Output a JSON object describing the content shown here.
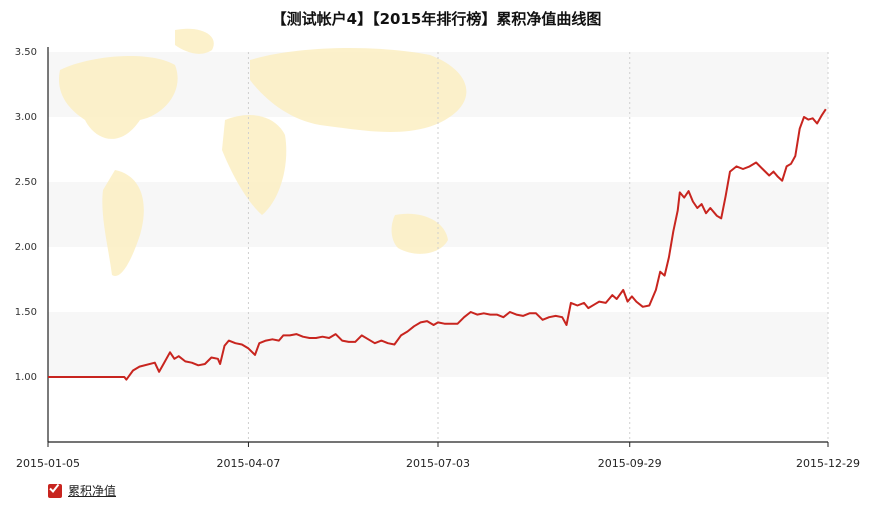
{
  "chart_data": {
    "type": "line",
    "title": "【测试帐户4】【2015年排行榜】累积净值曲线图",
    "xlabel": "",
    "ylabel": "",
    "ylim": [
      0.5,
      3.5
    ],
    "yticks": [
      "1.00",
      "1.50",
      "2.00",
      "2.50",
      "3.00",
      "3.50"
    ],
    "xticks": [
      "2015-01-05",
      "2015-04-07",
      "2015-07-03",
      "2015-09-29",
      "2015-12-29"
    ],
    "grid": "horizontal bands, vertical dashed lines at x ticks",
    "legend": "bottom-left",
    "colors": {
      "line": "#c8251f",
      "map": "#fbefc2",
      "band": "#f7f7f7"
    },
    "series": [
      {
        "name": "累积净值",
        "points": [
          [
            "2015-01-05",
            1.0
          ],
          [
            "2015-01-12",
            1.0
          ],
          [
            "2015-01-19",
            1.0
          ],
          [
            "2015-01-26",
            1.0
          ],
          [
            "2015-02-02",
            1.0
          ],
          [
            "2015-02-09",
            1.0
          ],
          [
            "2015-02-10",
            0.98
          ],
          [
            "2015-02-13",
            1.05
          ],
          [
            "2015-02-16",
            1.08
          ],
          [
            "2015-02-23",
            1.11
          ],
          [
            "2015-02-25",
            1.04
          ],
          [
            "2015-02-27",
            1.1
          ],
          [
            "2015-03-02",
            1.19
          ],
          [
            "2015-03-04",
            1.14
          ],
          [
            "2015-03-06",
            1.16
          ],
          [
            "2015-03-09",
            1.12
          ],
          [
            "2015-03-12",
            1.11
          ],
          [
            "2015-03-15",
            1.09
          ],
          [
            "2015-03-18",
            1.1
          ],
          [
            "2015-03-21",
            1.15
          ],
          [
            "2015-03-24",
            1.14
          ],
          [
            "2015-03-25",
            1.1
          ],
          [
            "2015-03-27",
            1.24
          ],
          [
            "2015-03-29",
            1.28
          ],
          [
            "2015-04-01",
            1.26
          ],
          [
            "2015-04-04",
            1.25
          ],
          [
            "2015-04-07",
            1.22
          ],
          [
            "2015-04-10",
            1.17
          ],
          [
            "2015-04-12",
            1.26
          ],
          [
            "2015-04-15",
            1.28
          ],
          [
            "2015-04-18",
            1.29
          ],
          [
            "2015-04-21",
            1.28
          ],
          [
            "2015-04-23",
            1.32
          ],
          [
            "2015-04-26",
            1.32
          ],
          [
            "2015-04-29",
            1.33
          ],
          [
            "2015-05-02",
            1.31
          ],
          [
            "2015-05-05",
            1.3
          ],
          [
            "2015-05-08",
            1.3
          ],
          [
            "2015-05-11",
            1.31
          ],
          [
            "2015-05-14",
            1.3
          ],
          [
            "2015-05-17",
            1.33
          ],
          [
            "2015-05-20",
            1.28
          ],
          [
            "2015-05-23",
            1.27
          ],
          [
            "2015-05-26",
            1.27
          ],
          [
            "2015-05-29",
            1.32
          ],
          [
            "2015-06-01",
            1.29
          ],
          [
            "2015-06-04",
            1.26
          ],
          [
            "2015-06-07",
            1.28
          ],
          [
            "2015-06-10",
            1.26
          ],
          [
            "2015-06-13",
            1.25
          ],
          [
            "2015-06-16",
            1.32
          ],
          [
            "2015-06-19",
            1.35
          ],
          [
            "2015-06-22",
            1.39
          ],
          [
            "2015-06-25",
            1.42
          ],
          [
            "2015-06-28",
            1.43
          ],
          [
            "2015-07-01",
            1.4
          ],
          [
            "2015-07-03",
            1.42
          ],
          [
            "2015-07-06",
            1.41
          ],
          [
            "2015-07-09",
            1.41
          ],
          [
            "2015-07-12",
            1.41
          ],
          [
            "2015-07-15",
            1.46
          ],
          [
            "2015-07-18",
            1.5
          ],
          [
            "2015-07-21",
            1.48
          ],
          [
            "2015-07-24",
            1.49
          ],
          [
            "2015-07-27",
            1.48
          ],
          [
            "2015-07-30",
            1.48
          ],
          [
            "2015-08-02",
            1.46
          ],
          [
            "2015-08-05",
            1.5
          ],
          [
            "2015-08-08",
            1.48
          ],
          [
            "2015-08-11",
            1.47
          ],
          [
            "2015-08-14",
            1.49
          ],
          [
            "2015-08-17",
            1.49
          ],
          [
            "2015-08-20",
            1.44
          ],
          [
            "2015-08-23",
            1.46
          ],
          [
            "2015-08-26",
            1.47
          ],
          [
            "2015-08-29",
            1.46
          ],
          [
            "2015-08-31",
            1.4
          ],
          [
            "2015-09-02",
            1.57
          ],
          [
            "2015-09-05",
            1.55
          ],
          [
            "2015-09-08",
            1.57
          ],
          [
            "2015-09-10",
            1.53
          ],
          [
            "2015-09-13",
            1.56
          ],
          [
            "2015-09-15",
            1.58
          ],
          [
            "2015-09-18",
            1.57
          ],
          [
            "2015-09-21",
            1.63
          ],
          [
            "2015-09-23",
            1.6
          ],
          [
            "2015-09-26",
            1.67
          ],
          [
            "2015-09-28",
            1.58
          ],
          [
            "2015-09-30",
            1.62
          ],
          [
            "2015-10-02",
            1.58
          ],
          [
            "2015-10-05",
            1.54
          ],
          [
            "2015-10-08",
            1.55
          ],
          [
            "2015-10-11",
            1.67
          ],
          [
            "2015-10-13",
            1.81
          ],
          [
            "2015-10-15",
            1.78
          ],
          [
            "2015-10-17",
            1.92
          ],
          [
            "2015-10-19",
            2.12
          ],
          [
            "2015-10-21",
            2.28
          ],
          [
            "2015-10-22",
            2.42
          ],
          [
            "2015-10-24",
            2.38
          ],
          [
            "2015-10-26",
            2.43
          ],
          [
            "2015-10-28",
            2.35
          ],
          [
            "2015-10-30",
            2.3
          ],
          [
            "2015-11-01",
            2.33
          ],
          [
            "2015-11-03",
            2.26
          ],
          [
            "2015-11-05",
            2.3
          ],
          [
            "2015-11-08",
            2.24
          ],
          [
            "2015-11-10",
            2.22
          ],
          [
            "2015-11-12",
            2.39
          ],
          [
            "2015-11-14",
            2.58
          ],
          [
            "2015-11-17",
            2.62
          ],
          [
            "2015-11-20",
            2.6
          ],
          [
            "2015-11-23",
            2.62
          ],
          [
            "2015-11-26",
            2.65
          ],
          [
            "2015-11-29",
            2.6
          ],
          [
            "2015-12-02",
            2.55
          ],
          [
            "2015-12-04",
            2.58
          ],
          [
            "2015-12-06",
            2.54
          ],
          [
            "2015-12-08",
            2.51
          ],
          [
            "2015-12-10",
            2.62
          ],
          [
            "2015-12-12",
            2.64
          ],
          [
            "2015-12-14",
            2.7
          ],
          [
            "2015-12-16",
            2.91
          ],
          [
            "2015-12-18",
            3.0
          ],
          [
            "2015-12-20",
            2.98
          ],
          [
            "2015-12-22",
            2.99
          ],
          [
            "2015-12-24",
            2.95
          ],
          [
            "2015-12-26",
            3.01
          ],
          [
            "2015-12-28",
            3.06
          ]
        ]
      }
    ]
  },
  "legend": {
    "series_label": "累积净值"
  }
}
